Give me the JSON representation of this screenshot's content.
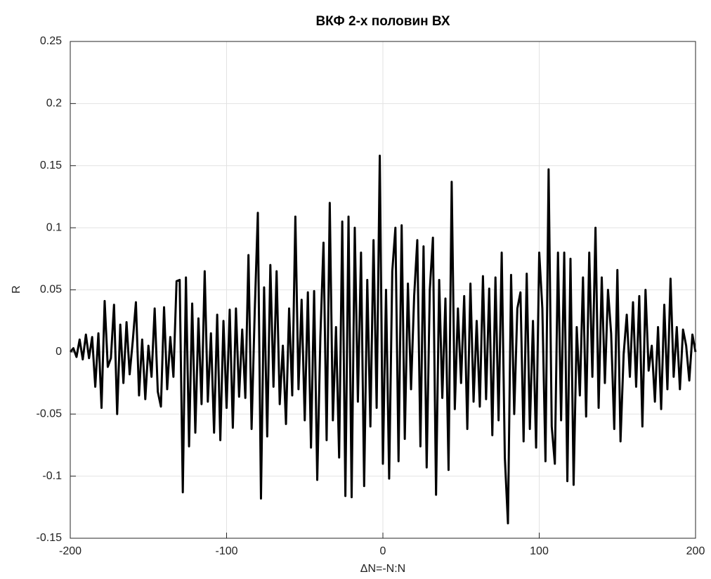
{
  "chart_data": {
    "type": "line",
    "title": "ВКФ 2-х половин ВХ",
    "xlabel": "ΔN=-N:N",
    "ylabel": "R",
    "color": "#000000",
    "grid": true,
    "xlim": [
      -200,
      200
    ],
    "ylim": [
      -0.15,
      0.25
    ],
    "xticks": [
      -200,
      -100,
      0,
      100,
      200
    ],
    "yticks": [
      -0.15,
      -0.1,
      -0.05,
      0,
      0.05,
      0.1,
      0.15,
      0.2,
      0.25
    ],
    "x": [
      -200,
      -198,
      -196,
      -194,
      -192,
      -190,
      -188,
      -186,
      -184,
      -182,
      -180,
      -178,
      -176,
      -174,
      -172,
      -170,
      -168,
      -166,
      -164,
      -162,
      -160,
      -158,
      -156,
      -154,
      -152,
      -150,
      -148,
      -146,
      -144,
      -142,
      -140,
      -138,
      -136,
      -134,
      -132,
      -130,
      -128,
      -126,
      -124,
      -122,
      -120,
      -118,
      -116,
      -114,
      -112,
      -110,
      -108,
      -106,
      -104,
      -102,
      -100,
      -98,
      -96,
      -94,
      -92,
      -90,
      -88,
      -86,
      -84,
      -82,
      -80,
      -78,
      -76,
      -74,
      -72,
      -70,
      -68,
      -66,
      -64,
      -62,
      -60,
      -58,
      -56,
      -54,
      -52,
      -50,
      -48,
      -46,
      -44,
      -42,
      -40,
      -38,
      -36,
      -34,
      -32,
      -30,
      -28,
      -26,
      -24,
      -22,
      -20,
      -18,
      -16,
      -14,
      -12,
      -10,
      -8,
      -6,
      -4,
      -2,
      0,
      2,
      4,
      6,
      8,
      10,
      12,
      14,
      16,
      18,
      20,
      22,
      24,
      26,
      28,
      30,
      32,
      34,
      36,
      38,
      40,
      42,
      44,
      46,
      48,
      50,
      52,
      54,
      56,
      58,
      60,
      62,
      64,
      66,
      68,
      70,
      72,
      74,
      76,
      78,
      80,
      82,
      84,
      86,
      88,
      90,
      92,
      94,
      96,
      98,
      100,
      102,
      104,
      106,
      108,
      110,
      112,
      114,
      116,
      118,
      120,
      122,
      124,
      126,
      128,
      130,
      132,
      134,
      136,
      138,
      140,
      142,
      144,
      146,
      148,
      150,
      152,
      154,
      156,
      158,
      160,
      162,
      164,
      166,
      168,
      170,
      172,
      174,
      176,
      178,
      180,
      182,
      184,
      186,
      188,
      190,
      192,
      194,
      196,
      198,
      200
    ],
    "values": [
      0,
      0.003,
      -0.004,
      0.01,
      -0.006,
      0.014,
      -0.005,
      0.012,
      -0.028,
      0.015,
      -0.045,
      0.041,
      -0.012,
      -0.005,
      0.038,
      -0.05,
      0.022,
      -0.025,
      0.024,
      -0.018,
      0.009,
      0.04,
      -0.035,
      0.01,
      -0.038,
      0.005,
      -0.02,
      0.035,
      -0.032,
      -0.044,
      0.036,
      -0.03,
      0.012,
      -0.02,
      0.057,
      0.058,
      -0.113,
      0.06,
      -0.076,
      0.039,
      -0.065,
      0.027,
      -0.042,
      0.065,
      -0.04,
      0.015,
      -0.065,
      0.03,
      -0.071,
      0.025,
      -0.045,
      0.034,
      -0.061,
      0.035,
      -0.036,
      0.018,
      -0.037,
      0.078,
      -0.062,
      0.032,
      0.112,
      -0.118,
      0.052,
      -0.068,
      0.07,
      -0.028,
      0.065,
      -0.042,
      0.005,
      -0.058,
      0.035,
      -0.035,
      0.109,
      -0.03,
      0.042,
      -0.055,
      0.048,
      -0.077,
      0.049,
      -0.103,
      0.012,
      0.088,
      -0.071,
      0.12,
      -0.055,
      0.02,
      -0.085,
      0.105,
      -0.116,
      0.109,
      -0.117,
      0.1,
      -0.04,
      0.08,
      -0.108,
      0.058,
      -0.06,
      0.09,
      -0.045,
      0.158,
      -0.09,
      0.05,
      -0.102,
      0.065,
      0.1,
      -0.088,
      0.102,
      -0.07,
      0.055,
      -0.03,
      0.045,
      0.09,
      -0.076,
      0.085,
      -0.093,
      0.05,
      0.092,
      -0.115,
      0.058,
      -0.037,
      0.043,
      -0.095,
      0.137,
      -0.046,
      0.035,
      -0.025,
      0.045,
      -0.062,
      0.055,
      -0.04,
      0.025,
      -0.044,
      0.061,
      -0.038,
      0.051,
      -0.067,
      0.06,
      -0.055,
      0.08,
      -0.085,
      -0.138,
      0.062,
      -0.05,
      0.035,
      0.048,
      -0.072,
      0.063,
      -0.062,
      0.025,
      -0.077,
      0.08,
      0.035,
      -0.088,
      0.147,
      -0.06,
      -0.09,
      0.08,
      -0.055,
      0.08,
      -0.104,
      0.075,
      -0.107,
      0.02,
      -0.035,
      0.06,
      -0.052,
      0.08,
      -0.02,
      0.1,
      -0.045,
      0.06,
      -0.025,
      0.05,
      0.015,
      -0.062,
      0.066,
      -0.072,
      -0.002,
      0.03,
      -0.02,
      0.04,
      -0.028,
      0.045,
      -0.06,
      0.05,
      -0.015,
      0.005,
      -0.04,
      0.02,
      -0.046,
      0.038,
      -0.03,
      0.059,
      -0.02,
      0.02,
      -0.03,
      0.018,
      0.005,
      -0.023,
      0.014,
      0
    ]
  }
}
